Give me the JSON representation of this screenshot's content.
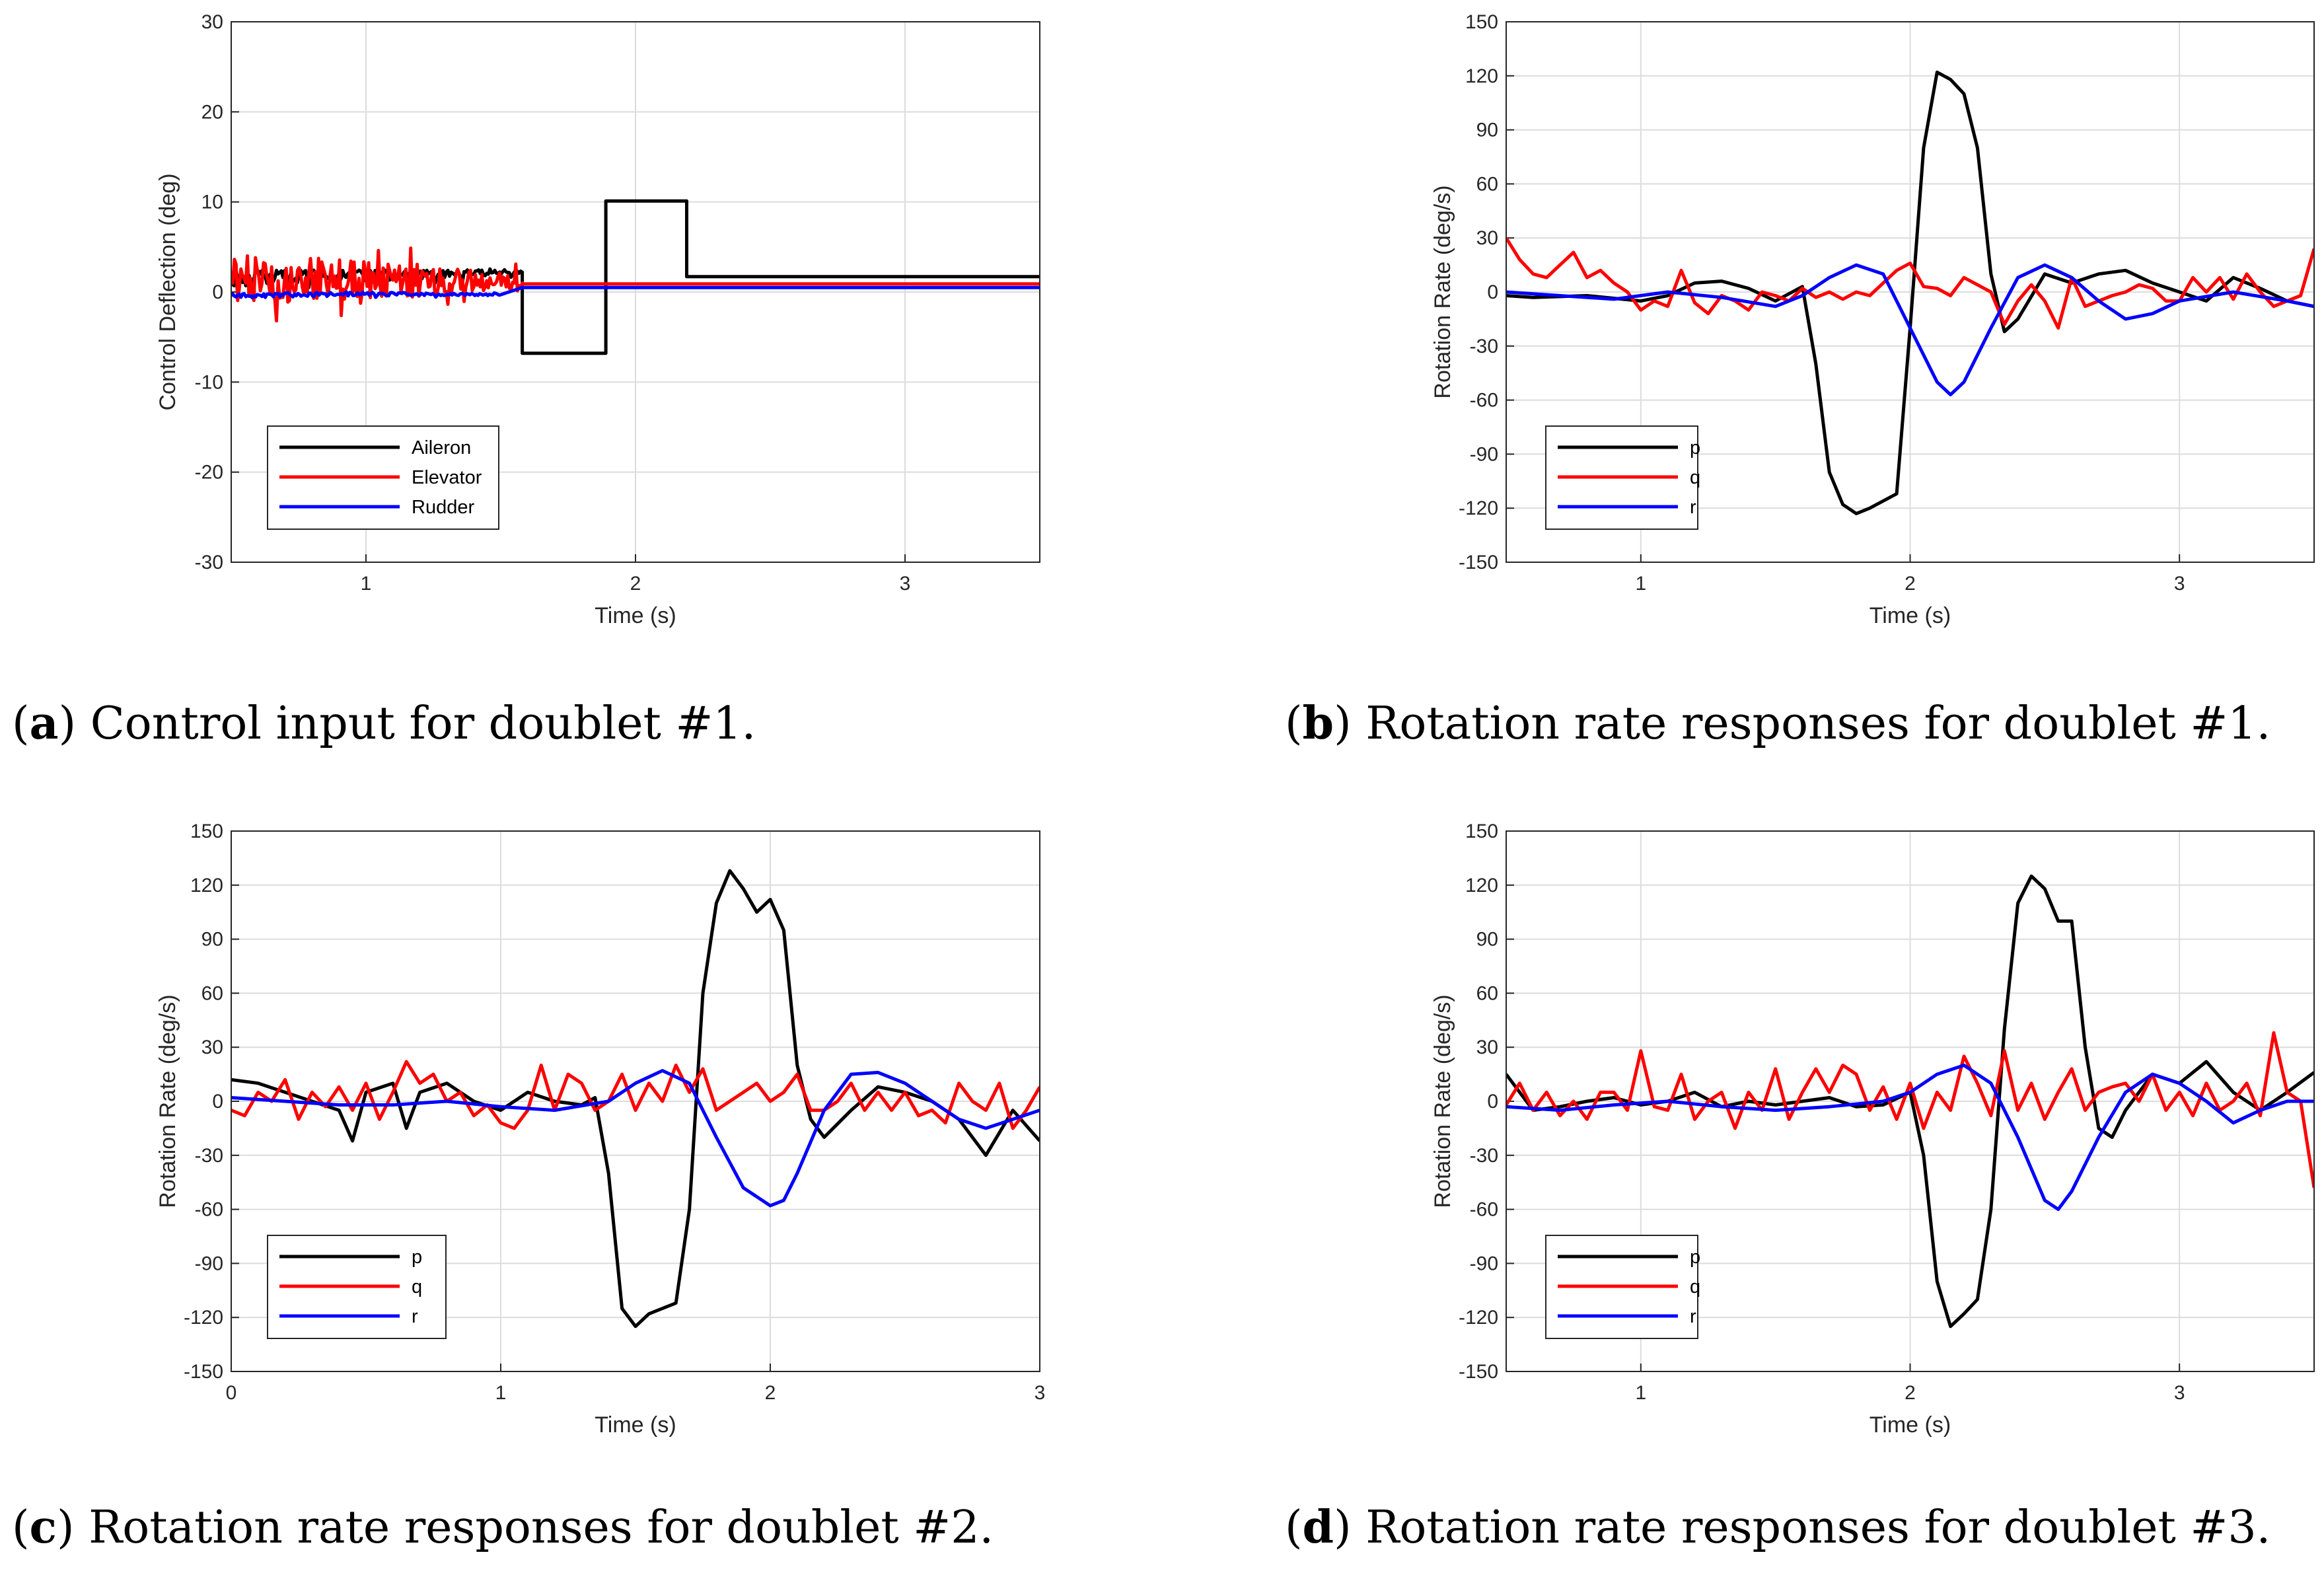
{
  "chart_data": [
    {
      "id": "a",
      "type": "line",
      "caption_letter": "a",
      "caption_text": "Control input for doublet #1.",
      "xlabel": "Time (s)",
      "ylabel": "Control Deflection (deg)",
      "xlim": [
        0.5,
        3.5
      ],
      "ylim": [
        -30,
        30
      ],
      "xticks": [
        1,
        2,
        3
      ],
      "yticks": [
        -30,
        -20,
        -10,
        0,
        10,
        20,
        30
      ],
      "grid": true,
      "legend_position": "lower-left",
      "series": [
        {
          "name": "Aileron",
          "color": "#000000",
          "x": [
            0.5,
            1.55,
            1.58,
            1.58,
            1.89,
            1.89,
            2.19,
            2.19,
            3.5
          ],
          "y": [
            1.5,
            2.2,
            2.2,
            -6.8,
            -6.8,
            10.1,
            10.1,
            1.7,
            1.7
          ],
          "noise_until": 1.58,
          "noise_amp": 0.6
        },
        {
          "name": "Elevator",
          "color": "#ff0000",
          "x": [
            0.5,
            1.58,
            1.58,
            3.5
          ],
          "y": [
            1.5,
            1.0,
            0.9,
            0.9
          ],
          "noise_until": 1.58,
          "noise_amp": 2.0
        },
        {
          "name": "Rudder",
          "color": "#0000ff",
          "x": [
            0.5,
            1.0,
            1.5,
            1.58,
            3.5
          ],
          "y": [
            -0.4,
            -0.2,
            -0.3,
            0.5,
            0.5
          ],
          "noise_until": 1.5,
          "noise_amp": 0.2
        }
      ]
    },
    {
      "id": "b",
      "type": "line",
      "caption_letter": "b",
      "caption_text": "Rotation rate responses for doublet #1.",
      "xlabel": "Time (s)",
      "ylabel": "Rotation Rate (deg/s)",
      "xlim": [
        0.5,
        3.5
      ],
      "ylim": [
        -150,
        150
      ],
      "xticks": [
        1,
        2,
        3
      ],
      "yticks": [
        -150,
        -120,
        -90,
        -60,
        -30,
        0,
        30,
        60,
        90,
        120,
        150
      ],
      "grid": true,
      "legend_position": "lower-left",
      "series": [
        {
          "name": "p",
          "color": "#000000",
          "x": [
            0.5,
            0.6,
            0.8,
            1.0,
            1.1,
            1.2,
            1.3,
            1.4,
            1.5,
            1.6,
            1.65,
            1.7,
            1.75,
            1.8,
            1.85,
            1.9,
            1.95,
            2.0,
            2.05,
            2.1,
            2.15,
            2.2,
            2.25,
            2.3,
            2.35,
            2.4,
            2.5,
            2.6,
            2.7,
            2.8,
            2.9,
            3.0,
            3.1,
            3.2,
            3.3,
            3.4,
            3.5
          ],
          "y": [
            -2,
            -3,
            -2,
            -5,
            -2,
            5,
            6,
            2,
            -5,
            3,
            -40,
            -100,
            -118,
            -123,
            -120,
            -116,
            -112,
            -20,
            80,
            122,
            118,
            110,
            80,
            10,
            -22,
            -15,
            10,
            5,
            10,
            12,
            5,
            0,
            -5,
            8,
            2,
            -5,
            -8
          ]
        },
        {
          "name": "q",
          "color": "#ff0000",
          "x": [
            0.5,
            0.55,
            0.6,
            0.65,
            0.7,
            0.75,
            0.8,
            0.85,
            0.9,
            0.95,
            1.0,
            1.05,
            1.1,
            1.15,
            1.2,
            1.25,
            1.3,
            1.35,
            1.4,
            1.45,
            1.5,
            1.55,
            1.6,
            1.65,
            1.7,
            1.75,
            1.8,
            1.85,
            1.9,
            1.95,
            2.0,
            2.05,
            2.1,
            2.15,
            2.2,
            2.25,
            2.3,
            2.35,
            2.4,
            2.45,
            2.5,
            2.55,
            2.6,
            2.65,
            2.7,
            2.75,
            2.8,
            2.85,
            2.9,
            2.95,
            3.0,
            3.05,
            3.1,
            3.15,
            3.2,
            3.25,
            3.3,
            3.35,
            3.4,
            3.45,
            3.5
          ],
          "y": [
            30,
            18,
            10,
            8,
            15,
            22,
            8,
            12,
            5,
            0,
            -10,
            -5,
            -8,
            12,
            -6,
            -12,
            -2,
            -5,
            -10,
            0,
            -2,
            -5,
            2,
            -3,
            0,
            -4,
            0,
            -2,
            5,
            12,
            16,
            3,
            2,
            -2,
            8,
            4,
            0,
            -18,
            -5,
            4,
            -5,
            -20,
            8,
            -8,
            -5,
            -2,
            0,
            4,
            2,
            -5,
            -5,
            8,
            0,
            8,
            -4,
            10,
            0,
            -8,
            -5,
            -2,
            24
          ]
        },
        {
          "name": "r",
          "color": "#0000ff",
          "x": [
            0.5,
            0.7,
            0.9,
            1.1,
            1.3,
            1.5,
            1.6,
            1.7,
            1.8,
            1.9,
            2.0,
            2.1,
            2.15,
            2.2,
            2.3,
            2.4,
            2.5,
            2.6,
            2.7,
            2.8,
            2.9,
            3.0,
            3.2,
            3.4,
            3.5
          ],
          "y": [
            0,
            -2,
            -4,
            0,
            -3,
            -8,
            -2,
            8,
            15,
            10,
            -20,
            -50,
            -57,
            -50,
            -20,
            8,
            15,
            8,
            -5,
            -15,
            -12,
            -5,
            0,
            -5,
            -8
          ]
        }
      ]
    },
    {
      "id": "c",
      "type": "line",
      "caption_letter": "c",
      "caption_text": "Rotation rate responses for doublet #2.",
      "xlabel": "Time (s)",
      "ylabel": "Rotation Rate (deg/s)",
      "xlim": [
        0,
        3
      ],
      "ylim": [
        -150,
        150
      ],
      "xticks": [
        0,
        1,
        2,
        3
      ],
      "yticks": [
        -150,
        -120,
        -90,
        -60,
        -30,
        0,
        30,
        60,
        90,
        120,
        150
      ],
      "grid": true,
      "legend_position": "lower-left",
      "series": [
        {
          "name": "p",
          "color": "#000000",
          "x": [
            0,
            0.1,
            0.2,
            0.3,
            0.4,
            0.45,
            0.5,
            0.6,
            0.65,
            0.7,
            0.8,
            0.9,
            1.0,
            1.1,
            1.2,
            1.3,
            1.35,
            1.4,
            1.45,
            1.5,
            1.55,
            1.6,
            1.65,
            1.7,
            1.75,
            1.8,
            1.85,
            1.9,
            1.95,
            2.0,
            2.05,
            2.1,
            2.15,
            2.2,
            2.3,
            2.4,
            2.5,
            2.6,
            2.7,
            2.8,
            2.9,
            3.0
          ],
          "y": [
            12,
            10,
            5,
            0,
            -5,
            -22,
            5,
            10,
            -15,
            5,
            10,
            0,
            -5,
            5,
            0,
            -2,
            2,
            -40,
            -115,
            -125,
            -118,
            -115,
            -112,
            -60,
            60,
            110,
            128,
            118,
            105,
            112,
            95,
            20,
            -10,
            -20,
            -5,
            8,
            5,
            0,
            -10,
            -30,
            -5,
            -22
          ]
        },
        {
          "name": "q",
          "color": "#ff0000",
          "x": [
            0,
            0.05,
            0.1,
            0.15,
            0.2,
            0.25,
            0.3,
            0.35,
            0.4,
            0.45,
            0.5,
            0.55,
            0.6,
            0.65,
            0.7,
            0.75,
            0.8,
            0.85,
            0.9,
            0.95,
            1.0,
            1.05,
            1.1,
            1.15,
            1.2,
            1.25,
            1.3,
            1.35,
            1.4,
            1.45,
            1.5,
            1.55,
            1.6,
            1.65,
            1.7,
            1.75,
            1.8,
            1.85,
            1.9,
            1.95,
            2.0,
            2.05,
            2.1,
            2.15,
            2.2,
            2.25,
            2.3,
            2.35,
            2.4,
            2.45,
            2.5,
            2.55,
            2.6,
            2.65,
            2.7,
            2.75,
            2.8,
            2.85,
            2.9,
            2.95,
            3.0
          ],
          "y": [
            -5,
            -8,
            5,
            0,
            12,
            -10,
            5,
            -3,
            8,
            -5,
            10,
            -10,
            5,
            22,
            10,
            15,
            0,
            5,
            -8,
            -2,
            -12,
            -15,
            -5,
            20,
            -5,
            15,
            10,
            -5,
            0,
            15,
            -5,
            10,
            0,
            20,
            5,
            18,
            -5,
            0,
            5,
            10,
            0,
            5,
            15,
            -5,
            -5,
            0,
            10,
            -5,
            5,
            -5,
            5,
            -8,
            -5,
            -12,
            10,
            0,
            -5,
            10,
            -15,
            -5,
            8
          ]
        },
        {
          "name": "r",
          "color": "#0000ff",
          "x": [
            0,
            0.2,
            0.4,
            0.6,
            0.8,
            1.0,
            1.2,
            1.4,
            1.5,
            1.6,
            1.7,
            1.8,
            1.9,
            2.0,
            2.05,
            2.1,
            2.2,
            2.3,
            2.4,
            2.5,
            2.6,
            2.7,
            2.8,
            2.9,
            3.0
          ],
          "y": [
            2,
            0,
            -2,
            -2,
            0,
            -3,
            -5,
            0,
            10,
            17,
            10,
            -20,
            -48,
            -58,
            -55,
            -40,
            -5,
            15,
            16,
            10,
            0,
            -10,
            -15,
            -10,
            -5
          ]
        }
      ]
    },
    {
      "id": "d",
      "type": "line",
      "caption_letter": "d",
      "caption_text": "Rotation rate responses for doublet #3.",
      "xlabel": "Time (s)",
      "ylabel": "Rotation Rate (deg/s)",
      "xlim": [
        0.5,
        3.5
      ],
      "ylim": [
        -150,
        150
      ],
      "xticks": [
        1,
        2,
        3
      ],
      "yticks": [
        -150,
        -120,
        -90,
        -60,
        -30,
        0,
        30,
        60,
        90,
        120,
        150
      ],
      "grid": true,
      "legend_position": "lower-left",
      "series": [
        {
          "name": "p",
          "color": "#000000",
          "x": [
            0.5,
            0.6,
            0.7,
            0.8,
            0.9,
            1.0,
            1.1,
            1.2,
            1.3,
            1.4,
            1.5,
            1.6,
            1.7,
            1.8,
            1.9,
            2.0,
            2.05,
            2.1,
            2.15,
            2.2,
            2.25,
            2.3,
            2.35,
            2.4,
            2.45,
            2.5,
            2.55,
            2.6,
            2.65,
            2.7,
            2.75,
            2.8,
            2.9,
            3.0,
            3.1,
            3.2,
            3.3,
            3.4,
            3.5
          ],
          "y": [
            15,
            -5,
            -3,
            0,
            2,
            -2,
            0,
            5,
            -3,
            0,
            -2,
            0,
            2,
            -3,
            -2,
            5,
            -30,
            -100,
            -125,
            -118,
            -110,
            -60,
            40,
            110,
            125,
            118,
            100,
            100,
            30,
            -15,
            -20,
            -5,
            15,
            10,
            22,
            5,
            -5,
            5,
            16
          ]
        },
        {
          "name": "q",
          "color": "#ff0000",
          "x": [
            0.5,
            0.55,
            0.6,
            0.65,
            0.7,
            0.75,
            0.8,
            0.85,
            0.9,
            0.95,
            1.0,
            1.05,
            1.1,
            1.15,
            1.2,
            1.25,
            1.3,
            1.35,
            1.4,
            1.45,
            1.5,
            1.55,
            1.6,
            1.65,
            1.7,
            1.75,
            1.8,
            1.85,
            1.9,
            1.95,
            2.0,
            2.05,
            2.1,
            2.15,
            2.2,
            2.25,
            2.3,
            2.35,
            2.4,
            2.45,
            2.5,
            2.55,
            2.6,
            2.65,
            2.7,
            2.75,
            2.8,
            2.85,
            2.9,
            2.95,
            3.0,
            3.05,
            3.1,
            3.15,
            3.2,
            3.25,
            3.3,
            3.35,
            3.4,
            3.45,
            3.5
          ],
          "y": [
            -2,
            10,
            -5,
            5,
            -8,
            0,
            -10,
            5,
            5,
            -5,
            28,
            -3,
            -5,
            15,
            -10,
            0,
            5,
            -15,
            5,
            -5,
            18,
            -10,
            5,
            18,
            5,
            20,
            15,
            -5,
            8,
            -10,
            10,
            -15,
            5,
            -5,
            25,
            10,
            -8,
            28,
            -5,
            10,
            -10,
            5,
            18,
            -5,
            5,
            8,
            10,
            0,
            15,
            -5,
            5,
            -8,
            10,
            -5,
            0,
            10,
            -8,
            38,
            5,
            0,
            -48
          ]
        },
        {
          "name": "r",
          "color": "#0000ff",
          "x": [
            0.5,
            0.7,
            0.9,
            1.1,
            1.3,
            1.5,
            1.7,
            1.9,
            2.0,
            2.1,
            2.2,
            2.3,
            2.4,
            2.5,
            2.55,
            2.6,
            2.7,
            2.8,
            2.9,
            3.0,
            3.1,
            3.2,
            3.3,
            3.4,
            3.5
          ],
          "y": [
            -3,
            -5,
            -2,
            0,
            -3,
            -5,
            -3,
            0,
            5,
            15,
            20,
            10,
            -20,
            -55,
            -60,
            -50,
            -20,
            5,
            15,
            10,
            0,
            -12,
            -5,
            0,
            0
          ]
        }
      ]
    }
  ]
}
